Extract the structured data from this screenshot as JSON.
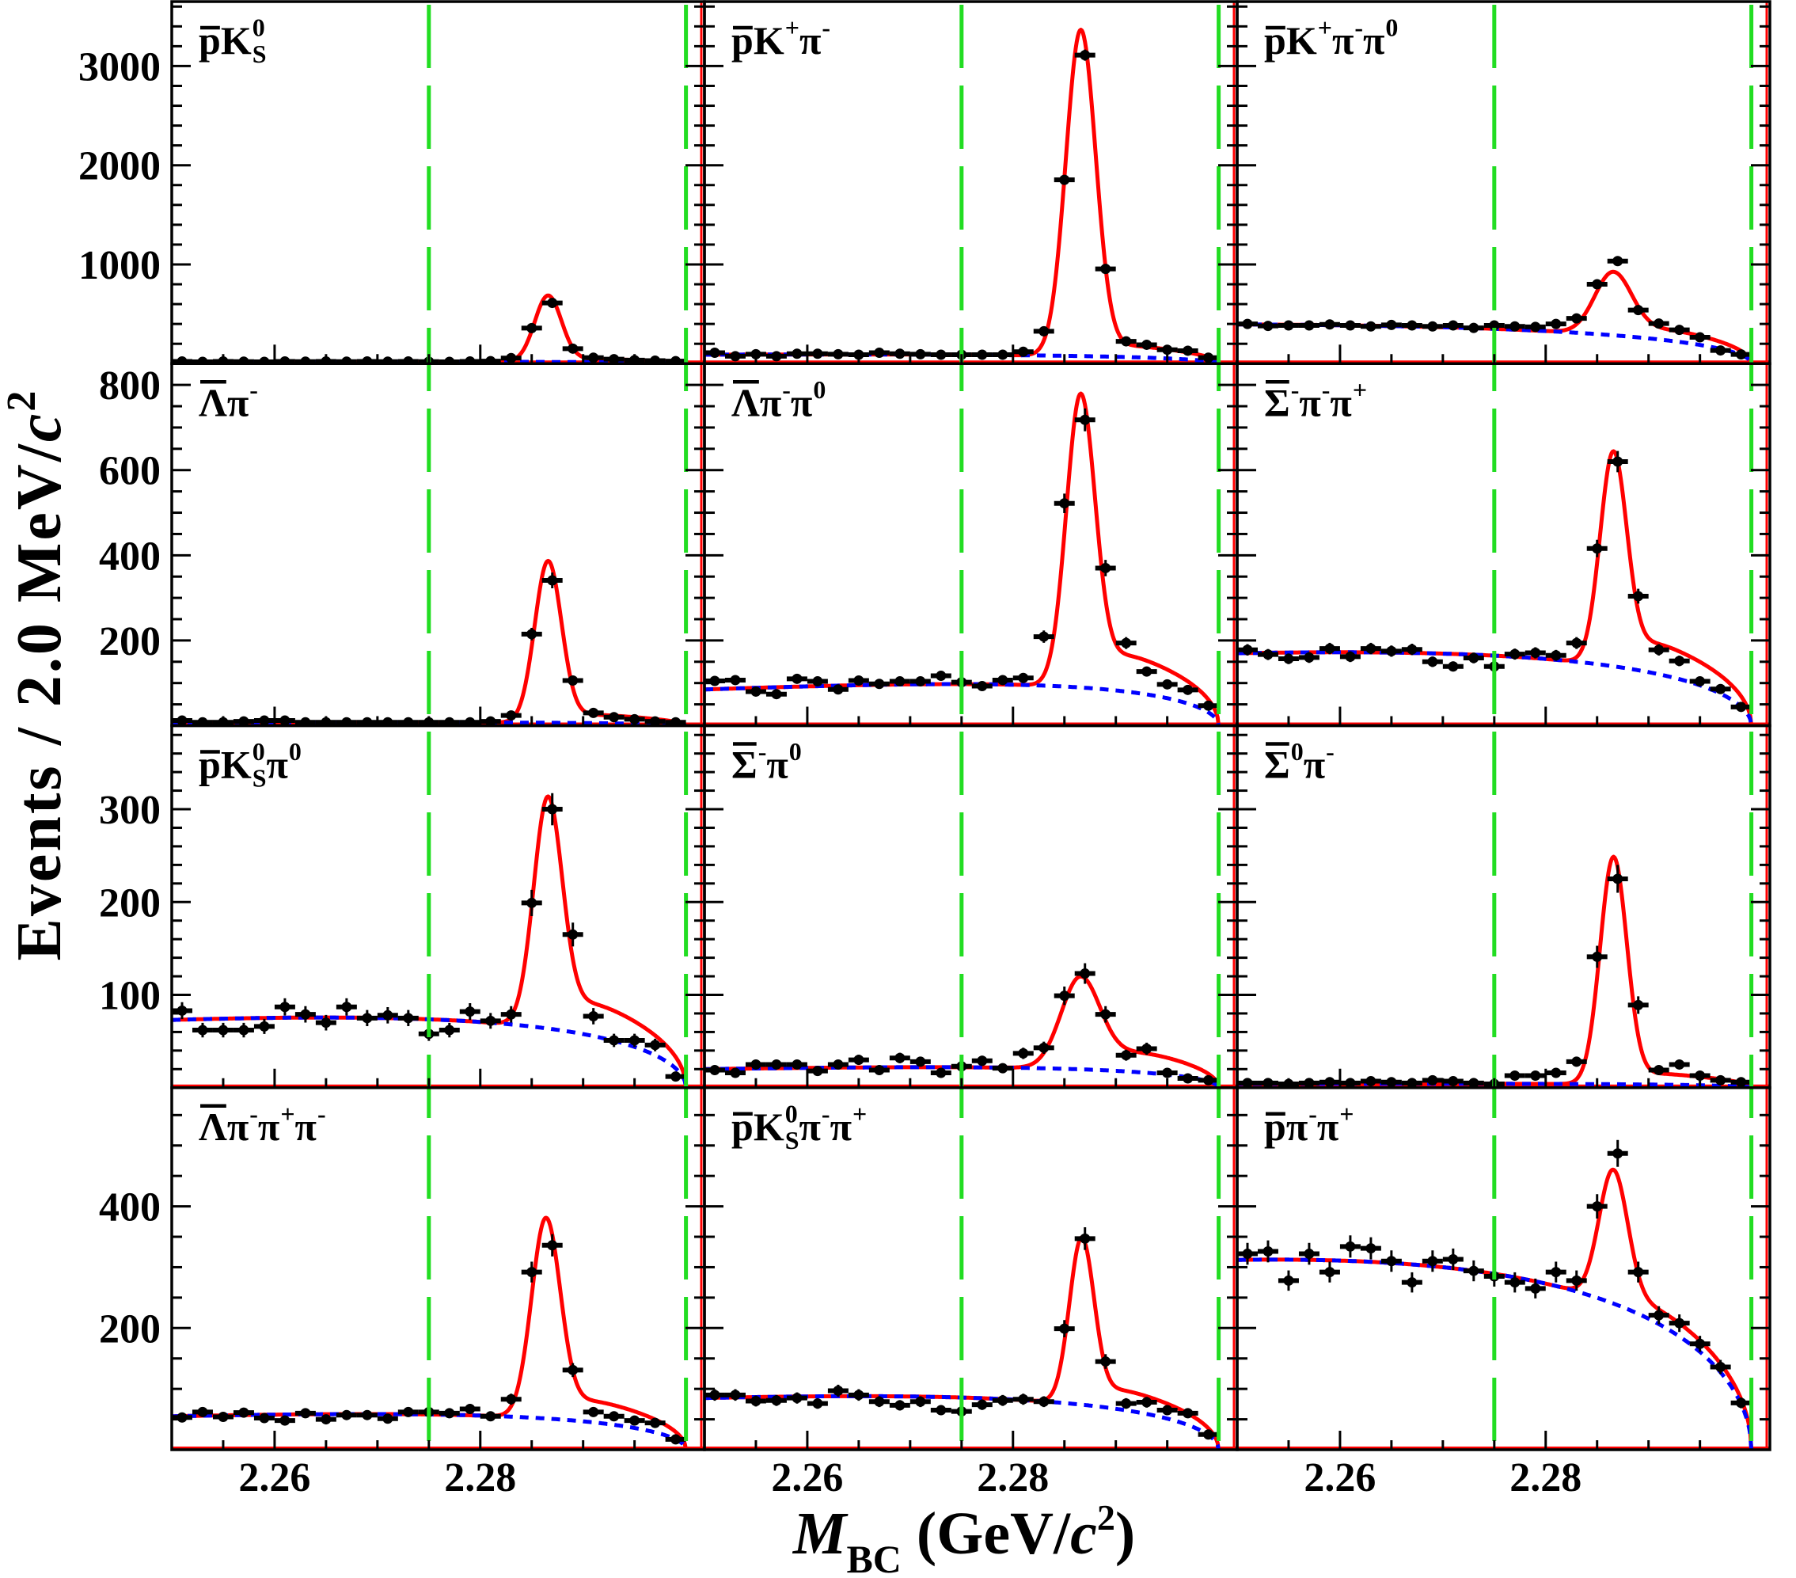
{
  "chart_data": {
    "type": "scatter",
    "layout": "4x3 grid of panels sharing x axis; rows share y axis",
    "xlabel_parts": [
      "M",
      "BC",
      " (GeV/",
      "c",
      "2",
      ")"
    ],
    "ylabel_parts": [
      "Events / 2.0 MeV/",
      "c",
      "2"
    ],
    "xlim": [
      2.25,
      2.3018
    ],
    "x_ticks": [
      2.26,
      2.28
    ],
    "x_tick_labels": [
      "2.26",
      "2.28"
    ],
    "x_minor_step": 0.005,
    "bin_width": 0.002,
    "x": [
      2.251,
      2.253,
      2.255,
      2.257,
      2.259,
      2.261,
      2.263,
      2.265,
      2.267,
      2.269,
      2.271,
      2.273,
      2.275,
      2.277,
      2.279,
      2.281,
      2.283,
      2.285,
      2.287,
      2.289,
      2.291,
      2.293,
      2.295,
      2.297,
      2.299
    ],
    "signal_window": [
      2.275,
      2.3
    ],
    "argus_endpoint": 2.3,
    "grid": false,
    "legend": "none",
    "colors": {
      "data": "#000000",
      "fit_total": "#ff0000",
      "fit_background": "#0000ff",
      "signal_window": "#22dd22",
      "frame": "#000000"
    },
    "series_names": [
      "data",
      "total fit",
      "background",
      "signal window"
    ],
    "rows": [
      {
        "ylim": [
          0,
          3650
        ],
        "major": 1000,
        "minor": 200,
        "y_ticks": [
          1000,
          2000,
          3000
        ]
      },
      {
        "ylim": [
          0,
          850
        ],
        "major": 200,
        "minor": 50,
        "y_ticks": [
          200,
          400,
          600,
          800
        ]
      },
      {
        "ylim": [
          0,
          390
        ],
        "major": 100,
        "minor": 20,
        "y_ticks": [
          100,
          200,
          300
        ]
      },
      {
        "ylim": [
          0,
          595
        ],
        "major": 200,
        "minor": 50,
        "y_ticks": [
          200,
          400
        ]
      }
    ],
    "panels": [
      {
        "name": "pbar K_S0",
        "label_parts": [
          {
            "t": "p",
            "bar": true
          },
          {
            "t": "K",
            "sub": "S",
            "sup": "0"
          }
        ],
        "values": [
          22,
          18,
          22,
          20,
          18,
          22,
          20,
          22,
          20,
          22,
          20,
          22,
          20,
          18,
          22,
          25,
          56,
          358,
          612,
          151,
          60,
          45,
          35,
          30,
          25
        ],
        "fit": {
          "bkg_level": 20,
          "argus_c": -15,
          "peak": 670,
          "mean": 2.2866,
          "sigma": 0.0013,
          "tail": 40
        }
      },
      {
        "name": "pbar K+ pi-",
        "label_parts": [
          {
            "t": "p",
            "bar": true
          },
          {
            "t": "K",
            "sup": "+"
          },
          {
            "t": "π",
            "sup": "-"
          }
        ],
        "values": [
          110,
          75,
          95,
          75,
          100,
          100,
          95,
          90,
          110,
          100,
          95,
          90,
          90,
          90,
          90,
          120,
          326,
          1853,
          3110,
          955,
          225,
          190,
          140,
          130,
          60
        ],
        "fit": {
          "bkg_level": 90,
          "argus_c": -15,
          "peak": 3290,
          "mean": 2.2866,
          "sigma": 0.00145,
          "tail": 150
        }
      },
      {
        "name": "pbar K+ pi- pi0",
        "label_parts": [
          {
            "t": "p",
            "bar": true
          },
          {
            "t": "K",
            "sup": "+"
          },
          {
            "t": "π",
            "sup": "-"
          },
          {
            "t": "π",
            "sup": "0"
          }
        ],
        "values": [
          400,
          380,
          385,
          385,
          395,
          385,
          375,
          390,
          385,
          375,
          385,
          360,
          385,
          375,
          370,
          400,
          456,
          800,
          1034,
          540,
          404,
          340,
          265,
          133,
          93
        ],
        "fit": {
          "bkg_level": 395,
          "argus_c": -10,
          "peak": 640,
          "mean": 2.2866,
          "sigma": 0.0018,
          "tail": 150
        }
      },
      {
        "name": "Lambdabar pi-",
        "label_parts": [
          {
            "t": "Λ",
            "bar": true
          },
          {
            "t": "π",
            "sup": "-"
          }
        ],
        "values": [
          12,
          8,
          8,
          10,
          12,
          12,
          8,
          8,
          8,
          8,
          8,
          8,
          8,
          8,
          8,
          10,
          24,
          215,
          341,
          106,
          30,
          20,
          15,
          10,
          8
        ],
        "fit": {
          "bkg_level": 8,
          "argus_c": -15,
          "peak": 380,
          "mean": 2.2866,
          "sigma": 0.0013,
          "tail": 25
        }
      },
      {
        "name": "Lambdabar pi- pi0",
        "label_parts": [
          {
            "t": "Λ",
            "bar": true
          },
          {
            "t": "π",
            "sup": "-"
          },
          {
            "t": "π",
            "sup": "0"
          }
        ],
        "values": [
          105,
          107,
          80,
          74,
          110,
          104,
          85,
          106,
          98,
          104,
          104,
          117,
          102,
          93,
          107,
          112,
          209,
          522,
          718,
          370,
          194,
          127,
          97,
          84,
          47
        ],
        "fit": {
          "bkg_level": 85,
          "argus_c": -22,
          "peak": 690,
          "mean": 2.2866,
          "sigma": 0.0014,
          "tail": 110
        }
      },
      {
        "name": "Sigmabar- pi- pi+",
        "label_parts": [
          {
            "t": "Σ",
            "bar": true,
            "sup": "-"
          },
          {
            "t": "π",
            "sup": "-"
          },
          {
            "t": "π",
            "sup": "+"
          }
        ],
        "values": [
          178,
          167,
          157,
          160,
          181,
          162,
          181,
          175,
          179,
          150,
          139,
          159,
          139,
          168,
          171,
          165,
          194,
          416,
          620,
          304,
          178,
          152,
          104,
          86,
          44
        ],
        "fit": {
          "bkg_level": 170,
          "argus_c": -14,
          "peak": 505,
          "mean": 2.2866,
          "sigma": 0.0013,
          "tail": 90
        }
      },
      {
        "name": "pbar K_S0 pi0",
        "label_parts": [
          {
            "t": "p",
            "bar": true
          },
          {
            "t": "K",
            "sub": "S",
            "sup": "0"
          },
          {
            "t": "π",
            "sup": "0"
          }
        ],
        "values": [
          83,
          62,
          62,
          62,
          66,
          87,
          79,
          70,
          87,
          75,
          78,
          75,
          58,
          62,
          82,
          72,
          79,
          199,
          300,
          165,
          77,
          51,
          51,
          46,
          12
        ],
        "fit": {
          "bkg_level": 73,
          "argus_c": -16,
          "peak": 250,
          "mean": 2.2866,
          "sigma": 0.0014,
          "tail": 45
        }
      },
      {
        "name": "Sigmabar- pi0",
        "label_parts": [
          {
            "t": "Σ",
            "bar": true,
            "sup": "-"
          },
          {
            "t": "π",
            "sup": "0"
          }
        ],
        "values": [
          19,
          16,
          25,
          25,
          25,
          18,
          25,
          30,
          19,
          32,
          28,
          16,
          23,
          29,
          21,
          37,
          43,
          99,
          123,
          79,
          35,
          42,
          16,
          10,
          8
        ],
        "fit": {
          "bkg_level": 20,
          "argus_c": -20,
          "peak": 100,
          "mean": 2.2866,
          "sigma": 0.0019,
          "tail": 30
        }
      },
      {
        "name": "Sigmabar0 pi-",
        "label_parts": [
          {
            "t": "Σ",
            "bar": true,
            "sup": "0"
          },
          {
            "t": "π",
            "sup": "-"
          }
        ],
        "values": [
          5,
          5,
          4,
          5,
          6,
          5,
          7,
          6,
          5,
          8,
          7,
          5,
          4,
          13,
          13,
          16,
          28,
          141,
          225,
          89,
          19,
          25,
          13,
          8,
          6
        ],
        "fit": {
          "bkg_level": 4,
          "argus_c": -18,
          "peak": 245,
          "mean": 2.2866,
          "sigma": 0.0013,
          "tail": 15
        }
      },
      {
        "name": "Lambdabar pi- pi+ pi-",
        "label_parts": [
          {
            "t": "Λ",
            "bar": true
          },
          {
            "t": "π",
            "sup": "-"
          },
          {
            "t": "π",
            "sup": "+"
          },
          {
            "t": "π",
            "sup": "-"
          }
        ],
        "values": [
          53,
          62,
          54,
          61,
          52,
          48,
          60,
          50,
          57,
          57,
          51,
          62,
          62,
          60,
          67,
          55,
          83,
          292,
          336,
          131,
          62,
          55,
          48,
          44,
          17
        ],
        "fit": {
          "bkg_level": 55,
          "argus_c": -18,
          "peak": 330,
          "mean": 2.2864,
          "sigma": 0.0014,
          "tail": 45
        }
      },
      {
        "name": "pbar K_S0 pi- pi+",
        "label_parts": [
          {
            "t": "p",
            "bar": true
          },
          {
            "t": "K",
            "sub": "S",
            "sup": "0"
          },
          {
            "t": "π",
            "sup": "-"
          },
          {
            "t": "π",
            "sup": "+"
          }
        ],
        "values": [
          90,
          90,
          80,
          81,
          85,
          76,
          97,
          90,
          79,
          73,
          79,
          65,
          63,
          74,
          81,
          83,
          79,
          199,
          347,
          145,
          76,
          78,
          65,
          60,
          25
        ],
        "fit": {
          "bkg_level": 85,
          "argus_c": -16,
          "peak": 275,
          "mean": 2.2867,
          "sigma": 0.0012,
          "tail": 40
        }
      },
      {
        "name": "pbar pi- pi+",
        "label_parts": [
          {
            "t": "p",
            "bar": true
          },
          {
            "t": "π",
            "sup": "-"
          },
          {
            "t": "π",
            "sup": "+"
          }
        ],
        "values": [
          322,
          326,
          278,
          322,
          292,
          334,
          331,
          310,
          275,
          310,
          313,
          294,
          285,
          275,
          265,
          292,
          278,
          400,
          487,
          292,
          221,
          208,
          174,
          136,
          77
        ],
        "fit": {
          "bkg_level": 312,
          "argus_c": -12,
          "peak": 220,
          "mean": 2.2866,
          "sigma": 0.0014,
          "tail": 30
        }
      }
    ]
  }
}
